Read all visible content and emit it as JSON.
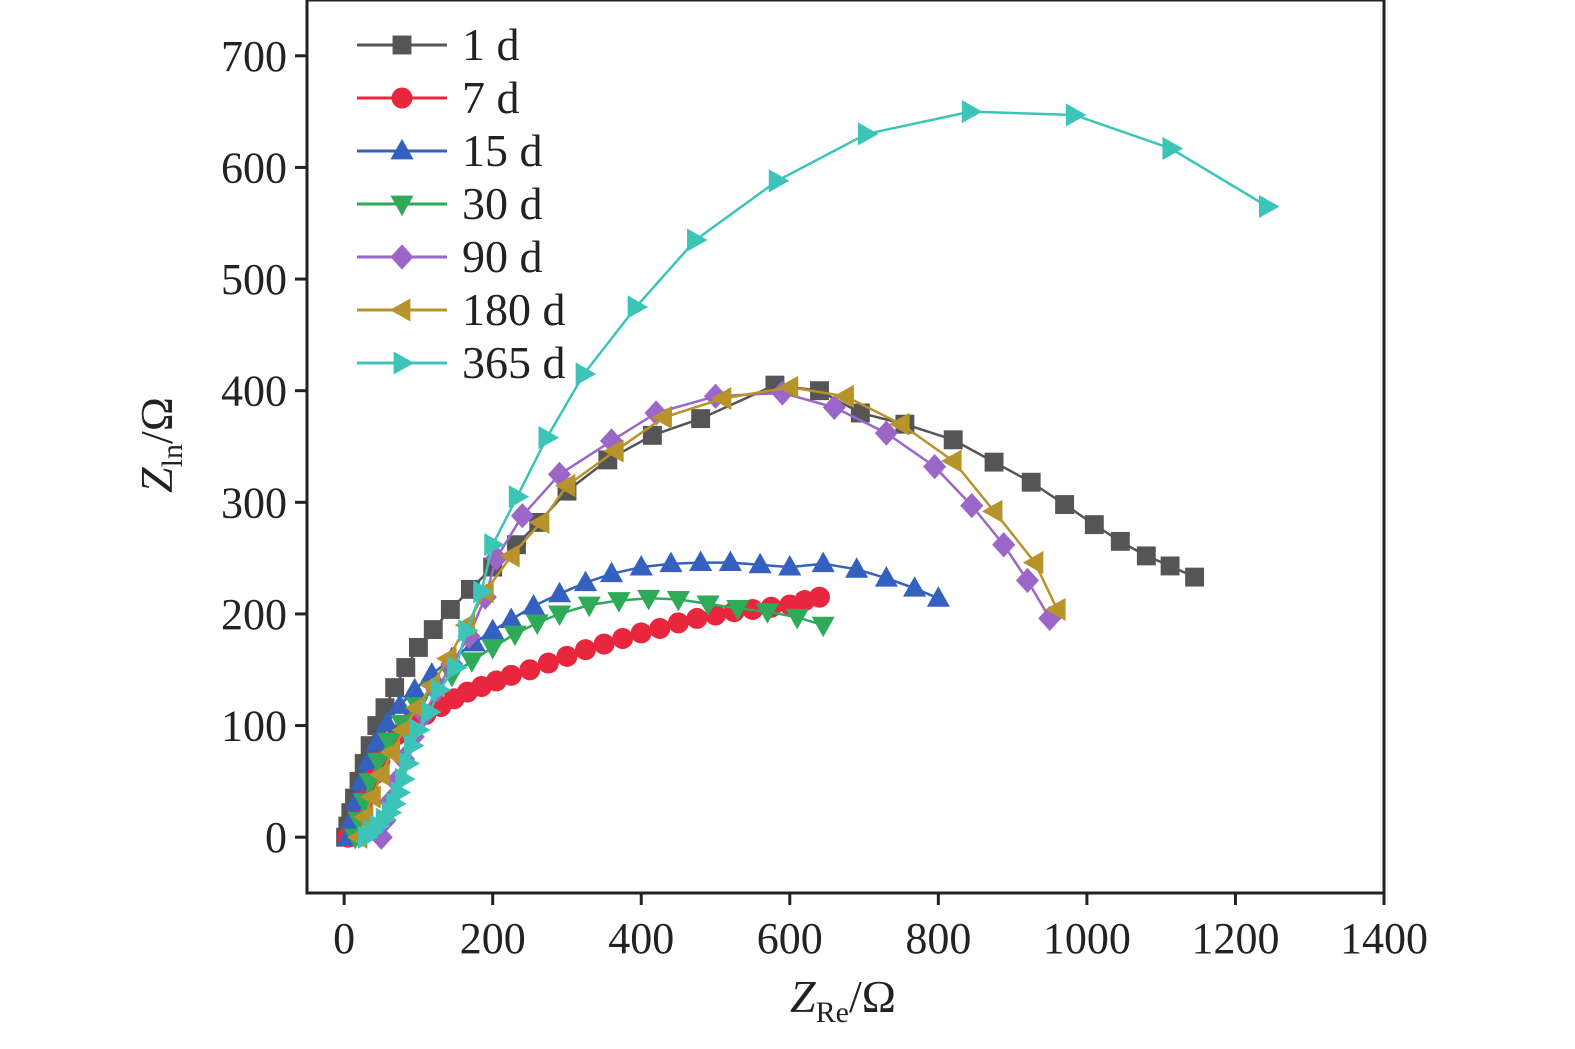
{
  "chart_data": {
    "type": "scatter",
    "title": "",
    "xlabel": {
      "main": "Z",
      "sub": "Re",
      "unit": "/Ω"
    },
    "ylabel": {
      "main": "Z",
      "sub": "ln",
      "unit": "/Ω"
    },
    "xlim": [
      -50,
      1400
    ],
    "ylim": [
      -50,
      750
    ],
    "xticks": [
      0,
      200,
      400,
      600,
      800,
      1000,
      1200,
      1400
    ],
    "yticks": [
      0,
      100,
      200,
      300,
      400,
      500,
      600,
      700
    ],
    "legend_position": "top-left",
    "grid": false,
    "series": [
      {
        "name": "1 d",
        "color": "#555555",
        "marker": "square",
        "points": [
          [
            2,
            0
          ],
          [
            5,
            10
          ],
          [
            9,
            22
          ],
          [
            14,
            35
          ],
          [
            20,
            50
          ],
          [
            27,
            66
          ],
          [
            35,
            82
          ],
          [
            44,
            100
          ],
          [
            55,
            116
          ],
          [
            68,
            134
          ],
          [
            83,
            152
          ],
          [
            100,
            170
          ],
          [
            120,
            186
          ],
          [
            143,
            204
          ],
          [
            170,
            222
          ],
          [
            200,
            242
          ],
          [
            232,
            262
          ],
          [
            262,
            282
          ],
          [
            300,
            310
          ],
          [
            355,
            338
          ],
          [
            415,
            360
          ],
          [
            480,
            375
          ],
          [
            580,
            405
          ],
          [
            640,
            400
          ],
          [
            695,
            380
          ],
          [
            755,
            370
          ],
          [
            820,
            356
          ],
          [
            875,
            336
          ],
          [
            925,
            318
          ],
          [
            970,
            298
          ],
          [
            1010,
            280
          ],
          [
            1045,
            265
          ],
          [
            1080,
            252
          ],
          [
            1112,
            243
          ],
          [
            1145,
            233
          ]
        ]
      },
      {
        "name": "7 d",
        "color": "#e8263d",
        "marker": "circle",
        "points": [
          [
            5,
            0
          ],
          [
            12,
            10
          ],
          [
            18,
            20
          ],
          [
            25,
            32
          ],
          [
            32,
            44
          ],
          [
            40,
            56
          ],
          [
            48,
            68
          ],
          [
            58,
            80
          ],
          [
            72,
            92
          ],
          [
            90,
            103
          ],
          [
            110,
            110
          ],
          [
            130,
            117
          ],
          [
            148,
            124
          ],
          [
            166,
            130
          ],
          [
            185,
            135
          ],
          [
            205,
            140
          ],
          [
            225,
            145
          ],
          [
            250,
            150
          ],
          [
            275,
            156
          ],
          [
            300,
            162
          ],
          [
            325,
            168
          ],
          [
            350,
            173
          ],
          [
            375,
            178
          ],
          [
            400,
            183
          ],
          [
            425,
            187
          ],
          [
            450,
            192
          ],
          [
            475,
            196
          ],
          [
            500,
            199
          ],
          [
            525,
            202
          ],
          [
            550,
            204
          ],
          [
            575,
            206
          ],
          [
            600,
            208
          ],
          [
            620,
            212
          ],
          [
            640,
            215
          ]
        ]
      },
      {
        "name": "15 d",
        "color": "#3460c0",
        "marker": "triangle-up",
        "points": [
          [
            5,
            0
          ],
          [
            10,
            15
          ],
          [
            16,
            32
          ],
          [
            24,
            50
          ],
          [
            33,
            68
          ],
          [
            44,
            85
          ],
          [
            58,
            102
          ],
          [
            75,
            118
          ],
          [
            95,
            132
          ],
          [
            118,
            146
          ],
          [
            145,
            160
          ],
          [
            175,
            174
          ],
          [
            200,
            185
          ],
          [
            225,
            195
          ],
          [
            255,
            207
          ],
          [
            290,
            218
          ],
          [
            325,
            228
          ],
          [
            360,
            236
          ],
          [
            400,
            242
          ],
          [
            440,
            245
          ],
          [
            480,
            246
          ],
          [
            520,
            246
          ],
          [
            560,
            244
          ],
          [
            600,
            242
          ],
          [
            645,
            245
          ],
          [
            690,
            240
          ],
          [
            730,
            232
          ],
          [
            768,
            223
          ],
          [
            800,
            214
          ]
        ]
      },
      {
        "name": "30 d",
        "color": "#2eaa58",
        "marker": "triangle-down",
        "points": [
          [
            15,
            0
          ],
          [
            20,
            15
          ],
          [
            27,
            32
          ],
          [
            35,
            50
          ],
          [
            46,
            68
          ],
          [
            60,
            86
          ],
          [
            78,
            102
          ],
          [
            98,
            118
          ],
          [
            120,
            132
          ],
          [
            145,
            145
          ],
          [
            172,
            158
          ],
          [
            200,
            170
          ],
          [
            230,
            182
          ],
          [
            260,
            192
          ],
          [
            290,
            200
          ],
          [
            330,
            208
          ],
          [
            370,
            212
          ],
          [
            410,
            214
          ],
          [
            450,
            213
          ],
          [
            490,
            209
          ],
          [
            530,
            205
          ],
          [
            570,
            202
          ],
          [
            610,
            197
          ],
          [
            645,
            190
          ]
        ]
      },
      {
        "name": "90 d",
        "color": "#9a66c8",
        "marker": "diamond",
        "points": [
          [
            50,
            0
          ],
          [
            55,
            15
          ],
          [
            62,
            32
          ],
          [
            70,
            50
          ],
          [
            80,
            70
          ],
          [
            93,
            90
          ],
          [
            108,
            110
          ],
          [
            125,
            132
          ],
          [
            145,
            155
          ],
          [
            168,
            180
          ],
          [
            190,
            215
          ],
          [
            205,
            250
          ],
          [
            240,
            288
          ],
          [
            290,
            325
          ],
          [
            360,
            355
          ],
          [
            420,
            380
          ],
          [
            500,
            395
          ],
          [
            590,
            398
          ],
          [
            660,
            385
          ],
          [
            730,
            362
          ],
          [
            795,
            332
          ],
          [
            845,
            297
          ],
          [
            888,
            262
          ],
          [
            920,
            230
          ],
          [
            950,
            196
          ]
        ]
      },
      {
        "name": "180 d",
        "color": "#b8922a",
        "marker": "triangle-left",
        "points": [
          [
            20,
            0
          ],
          [
            28,
            18
          ],
          [
            38,
            36
          ],
          [
            50,
            56
          ],
          [
            64,
            76
          ],
          [
            80,
            96
          ],
          [
            98,
            116
          ],
          [
            118,
            136
          ],
          [
            140,
            160
          ],
          [
            165,
            190
          ],
          [
            190,
            220
          ],
          [
            225,
            252
          ],
          [
            265,
            282
          ],
          [
            300,
            315
          ],
          [
            365,
            346
          ],
          [
            430,
            376
          ],
          [
            510,
            393
          ],
          [
            600,
            403
          ],
          [
            675,
            395
          ],
          [
            750,
            370
          ],
          [
            820,
            337
          ],
          [
            875,
            292
          ],
          [
            930,
            246
          ],
          [
            960,
            204
          ]
        ]
      },
      {
        "name": "365 d",
        "color": "#3cc4b8",
        "marker": "triangle-right",
        "points": [
          [
            30,
            0
          ],
          [
            38,
            5
          ],
          [
            46,
            10
          ],
          [
            54,
            16
          ],
          [
            62,
            22
          ],
          [
            68,
            30
          ],
          [
            74,
            40
          ],
          [
            80,
            52
          ],
          [
            86,
            66
          ],
          [
            92,
            82
          ],
          [
            100,
            96
          ],
          [
            115,
            112
          ],
          [
            128,
            132
          ],
          [
            150,
            152
          ],
          [
            165,
            185
          ],
          [
            185,
            220
          ],
          [
            200,
            262
          ],
          [
            233,
            305
          ],
          [
            273,
            358
          ],
          [
            323,
            415
          ],
          [
            393,
            475
          ],
          [
            473,
            535
          ],
          [
            583,
            588
          ],
          [
            703,
            630
          ],
          [
            843,
            650
          ],
          [
            983,
            647
          ],
          [
            1113,
            617
          ],
          [
            1243,
            565
          ]
        ]
      }
    ]
  }
}
